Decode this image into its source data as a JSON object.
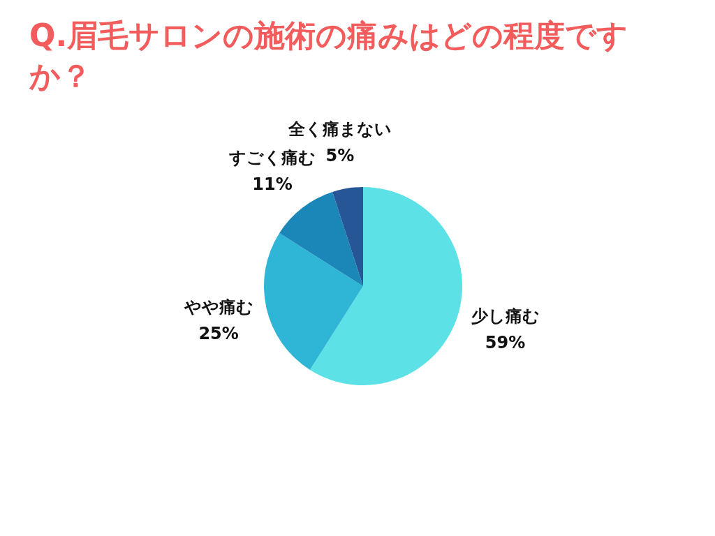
{
  "chart_data": {
    "type": "pie",
    "title": "Q.眉毛サロンの施術の痛みはどの程度ですか？",
    "categories": [
      "少し痛む",
      "やや痛む",
      "すごく痛む",
      "全く痛まない"
    ],
    "values": [
      59,
      25,
      11,
      5
    ],
    "value_labels": [
      "59%",
      "25%",
      "11%",
      "5%"
    ],
    "colors": [
      "#5ce1e6",
      "#2fb5d6",
      "#1b87b8",
      "#275696"
    ]
  }
}
